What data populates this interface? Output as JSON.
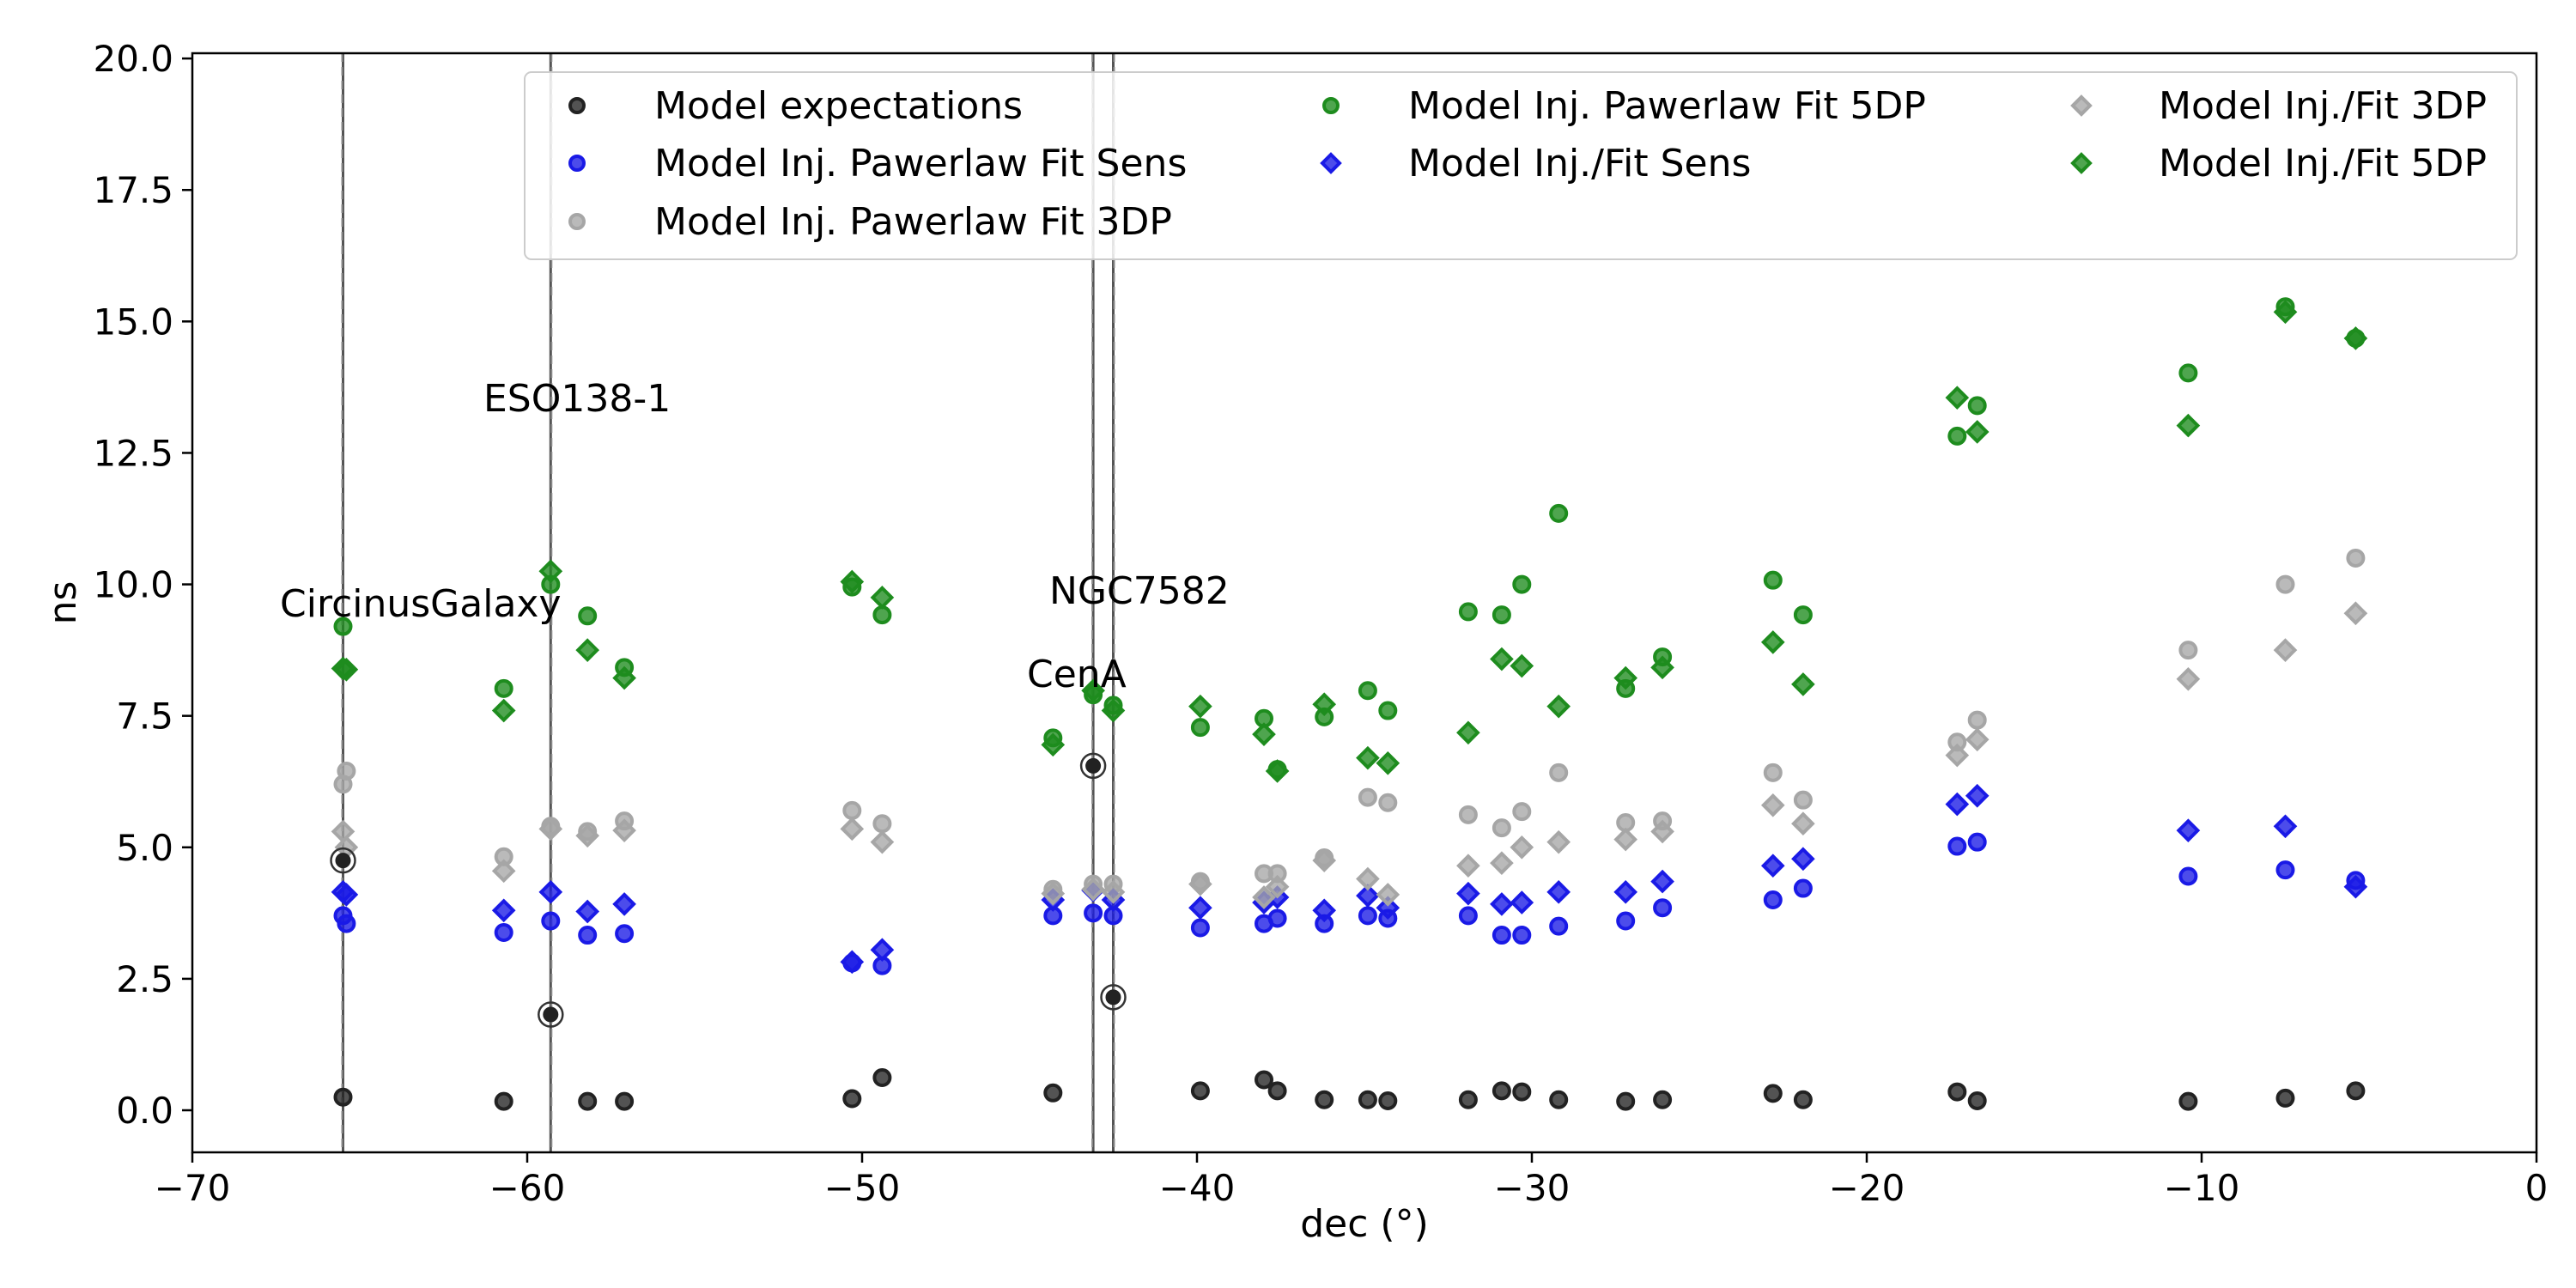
{
  "chart_data": {
    "type": "scatter",
    "xlabel": "dec (°)",
    "ylabel": "ns",
    "xlim": [
      -70,
      0
    ],
    "ylim": [
      -0.8,
      20.1
    ],
    "x_ticks": [
      -70,
      -60,
      -50,
      -40,
      -30,
      -20,
      -10,
      0
    ],
    "x_tick_labels": [
      "−70",
      "−60",
      "−50",
      "−40",
      "−30",
      "−20",
      "−10",
      "0"
    ],
    "y_ticks": [
      0,
      2.5,
      5,
      7.5,
      10,
      12.5,
      15,
      17.5,
      20
    ],
    "y_tick_labels": [
      "0.0",
      "2.5",
      "5.0",
      "7.5",
      "10.0",
      "12.5",
      "15.0",
      "17.5",
      "20.0"
    ],
    "grid": false,
    "legend_position": "top",
    "legend_columns": [
      [
        "Model expectations",
        "Model Inj. Pawerlaw Fit Sens",
        "Model Inj. Pawerlaw Fit 3DP"
      ],
      [
        "Model Inj. Pawerlaw Fit  5DP",
        "Model Inj./Fit Sens"
      ],
      [
        "Model Inj./Fit 3DP",
        "Model Inj./Fit 5DP"
      ]
    ],
    "series": [
      {
        "name": "Model expectations",
        "marker": "circle",
        "color": "#222222",
        "points": [
          [
            -65.5,
            0.25
          ],
          [
            -60.7,
            0.17
          ],
          [
            -58.2,
            0.17
          ],
          [
            -57.1,
            0.17
          ],
          [
            -50.3,
            0.22
          ],
          [
            -49.4,
            0.62
          ],
          [
            -44.3,
            0.33
          ],
          [
            -39.9,
            0.37
          ],
          [
            -38.0,
            0.58
          ],
          [
            -37.6,
            0.37
          ],
          [
            -36.2,
            0.2
          ],
          [
            -34.9,
            0.2
          ],
          [
            -34.3,
            0.18
          ],
          [
            -31.9,
            0.2
          ],
          [
            -30.9,
            0.37
          ],
          [
            -30.3,
            0.35
          ],
          [
            -29.2,
            0.2
          ],
          [
            -27.2,
            0.17
          ],
          [
            -26.1,
            0.2
          ],
          [
            -22.8,
            0.32
          ],
          [
            -21.9,
            0.2
          ],
          [
            -17.3,
            0.35
          ],
          [
            -16.7,
            0.18
          ],
          [
            -10.4,
            0.17
          ],
          [
            -7.5,
            0.23
          ],
          [
            -5.4,
            0.37
          ]
        ]
      },
      {
        "name": "Model Inj. Pawerlaw Fit Sens",
        "marker": "circle",
        "color": "#1a1ae6",
        "points": [
          [
            -65.5,
            3.7
          ],
          [
            -65.4,
            3.55
          ],
          [
            -60.7,
            3.38
          ],
          [
            -59.3,
            3.6
          ],
          [
            -58.2,
            3.33
          ],
          [
            -57.1,
            3.36
          ],
          [
            -50.3,
            2.8
          ],
          [
            -49.4,
            2.75
          ],
          [
            -44.3,
            3.7
          ],
          [
            -43.1,
            3.75
          ],
          [
            -42.5,
            3.7
          ],
          [
            -39.9,
            3.47
          ],
          [
            -38.0,
            3.55
          ],
          [
            -37.6,
            3.65
          ],
          [
            -36.2,
            3.55
          ],
          [
            -34.9,
            3.7
          ],
          [
            -34.3,
            3.65
          ],
          [
            -31.9,
            3.7
          ],
          [
            -30.9,
            3.33
          ],
          [
            -30.3,
            3.33
          ],
          [
            -29.2,
            3.5
          ],
          [
            -27.2,
            3.6
          ],
          [
            -26.1,
            3.85
          ],
          [
            -22.8,
            4.0
          ],
          [
            -21.9,
            4.22
          ],
          [
            -17.3,
            5.02
          ],
          [
            -16.7,
            5.1
          ],
          [
            -10.4,
            4.45
          ],
          [
            -7.5,
            4.57
          ],
          [
            -5.4,
            4.37
          ]
        ]
      },
      {
        "name": "Model Inj. Pawerlaw Fit 3DP",
        "marker": "circle",
        "color": "#a6a6a6",
        "points": [
          [
            -65.5,
            6.2
          ],
          [
            -65.4,
            6.45
          ],
          [
            -60.7,
            4.82
          ],
          [
            -59.3,
            5.4
          ],
          [
            -58.2,
            5.3
          ],
          [
            -57.1,
            5.5
          ],
          [
            -50.3,
            5.7
          ],
          [
            -49.4,
            5.45
          ],
          [
            -44.3,
            4.2
          ],
          [
            -43.1,
            4.3
          ],
          [
            -42.5,
            4.3
          ],
          [
            -39.9,
            4.35
          ],
          [
            -38.0,
            4.5
          ],
          [
            -37.6,
            4.5
          ],
          [
            -36.2,
            4.8
          ],
          [
            -34.9,
            5.95
          ],
          [
            -34.3,
            5.85
          ],
          [
            -31.9,
            5.62
          ],
          [
            -30.9,
            5.37
          ],
          [
            -30.3,
            5.68
          ],
          [
            -29.2,
            6.42
          ],
          [
            -27.2,
            5.47
          ],
          [
            -26.1,
            5.5
          ],
          [
            -22.8,
            6.42
          ],
          [
            -21.9,
            5.9
          ],
          [
            -17.3,
            7.0
          ],
          [
            -16.7,
            7.42
          ],
          [
            -10.4,
            8.75
          ],
          [
            -7.5,
            10.0
          ],
          [
            -5.4,
            10.5
          ]
        ]
      },
      {
        "name": "Model Inj. Pawerlaw Fit  5DP",
        "marker": "circle",
        "color": "#1e8c1e",
        "points": [
          [
            -65.5,
            9.2
          ],
          [
            -60.7,
            8.02
          ],
          [
            -59.3,
            10.0
          ],
          [
            -58.2,
            9.4
          ],
          [
            -57.1,
            8.42
          ],
          [
            -50.3,
            9.95
          ],
          [
            -49.4,
            9.42
          ],
          [
            -44.3,
            7.08
          ],
          [
            -43.1,
            7.9
          ],
          [
            -42.5,
            7.7
          ],
          [
            -39.9,
            7.28
          ],
          [
            -38.0,
            7.45
          ],
          [
            -37.6,
            6.48
          ],
          [
            -36.2,
            7.48
          ],
          [
            -34.9,
            7.98
          ],
          [
            -34.3,
            7.6
          ],
          [
            -31.9,
            9.48
          ],
          [
            -30.9,
            9.42
          ],
          [
            -30.3,
            10.0
          ],
          [
            -29.2,
            11.35
          ],
          [
            -27.2,
            8.02
          ],
          [
            -26.1,
            8.62
          ],
          [
            -22.8,
            10.08
          ],
          [
            -21.9,
            9.42
          ],
          [
            -17.3,
            12.82
          ],
          [
            -16.7,
            13.4
          ],
          [
            -10.4,
            14.02
          ],
          [
            -7.5,
            15.28
          ],
          [
            -5.4,
            14.68
          ]
        ]
      },
      {
        "name": "Model Inj./Fit Sens",
        "marker": "diamond",
        "color": "#1a1ae6",
        "points": [
          [
            -65.5,
            4.15
          ],
          [
            -65.4,
            4.1
          ],
          [
            -60.7,
            3.8
          ],
          [
            -59.3,
            4.15
          ],
          [
            -58.2,
            3.78
          ],
          [
            -57.1,
            3.92
          ],
          [
            -50.3,
            2.82
          ],
          [
            -49.4,
            3.05
          ],
          [
            -44.3,
            4.0
          ],
          [
            -43.1,
            4.18
          ],
          [
            -42.5,
            4.0
          ],
          [
            -39.9,
            3.85
          ],
          [
            -38.0,
            3.95
          ],
          [
            -37.6,
            4.05
          ],
          [
            -36.2,
            3.8
          ],
          [
            -34.9,
            4.08
          ],
          [
            -34.3,
            3.85
          ],
          [
            -31.9,
            4.12
          ],
          [
            -30.9,
            3.92
          ],
          [
            -30.3,
            3.95
          ],
          [
            -29.2,
            4.15
          ],
          [
            -27.2,
            4.15
          ],
          [
            -26.1,
            4.35
          ],
          [
            -22.8,
            4.65
          ],
          [
            -21.9,
            4.78
          ],
          [
            -17.3,
            5.82
          ],
          [
            -16.7,
            5.98
          ],
          [
            -10.4,
            5.32
          ],
          [
            -7.5,
            5.4
          ],
          [
            -5.4,
            4.25
          ]
        ]
      },
      {
        "name": "Model Inj./Fit 3DP",
        "marker": "diamond",
        "color": "#a6a6a6",
        "points": [
          [
            -65.5,
            5.3
          ],
          [
            -65.4,
            5.0
          ],
          [
            -60.7,
            4.55
          ],
          [
            -59.3,
            5.35
          ],
          [
            -58.2,
            5.22
          ],
          [
            -57.1,
            5.32
          ],
          [
            -50.3,
            5.35
          ],
          [
            -49.4,
            5.1
          ],
          [
            -44.3,
            4.12
          ],
          [
            -43.1,
            4.2
          ],
          [
            -42.5,
            4.15
          ],
          [
            -39.9,
            4.3
          ],
          [
            -38.0,
            4.05
          ],
          [
            -37.6,
            4.25
          ],
          [
            -36.2,
            4.75
          ],
          [
            -34.9,
            4.4
          ],
          [
            -34.3,
            4.1
          ],
          [
            -31.9,
            4.65
          ],
          [
            -30.9,
            4.7
          ],
          [
            -30.3,
            5.0
          ],
          [
            -29.2,
            5.1
          ],
          [
            -27.2,
            5.15
          ],
          [
            -26.1,
            5.3
          ],
          [
            -22.8,
            5.8
          ],
          [
            -21.9,
            5.45
          ],
          [
            -17.3,
            6.75
          ],
          [
            -16.7,
            7.05
          ],
          [
            -10.4,
            8.2
          ],
          [
            -7.5,
            8.75
          ],
          [
            -5.4,
            9.45
          ]
        ]
      },
      {
        "name": "Model Inj./Fit 5DP",
        "marker": "diamond",
        "color": "#1e8c1e",
        "points": [
          [
            -65.5,
            8.4
          ],
          [
            -65.4,
            8.38
          ],
          [
            -60.7,
            7.6
          ],
          [
            -59.3,
            10.25
          ],
          [
            -58.2,
            8.75
          ],
          [
            -57.1,
            8.22
          ],
          [
            -50.3,
            10.05
          ],
          [
            -49.4,
            9.75
          ],
          [
            -44.3,
            6.95
          ],
          [
            -43.1,
            7.98
          ],
          [
            -42.5,
            7.6
          ],
          [
            -39.9,
            7.68
          ],
          [
            -38.0,
            7.15
          ],
          [
            -37.6,
            6.45
          ],
          [
            -36.2,
            7.72
          ],
          [
            -34.9,
            6.7
          ],
          [
            -34.3,
            6.6
          ],
          [
            -31.9,
            7.18
          ],
          [
            -30.9,
            8.58
          ],
          [
            -30.3,
            8.45
          ],
          [
            -29.2,
            7.68
          ],
          [
            -27.2,
            8.22
          ],
          [
            -26.1,
            8.42
          ],
          [
            -22.8,
            8.9
          ],
          [
            -21.9,
            8.1
          ],
          [
            -17.3,
            13.55
          ],
          [
            -16.7,
            12.9
          ],
          [
            -10.4,
            13.02
          ],
          [
            -7.5,
            15.18
          ],
          [
            -5.4,
            14.68
          ]
        ]
      }
    ],
    "sources": [
      {
        "name": "CircinusGalaxy",
        "dec": -65.5,
        "ns": 4.75
      },
      {
        "name": "ESO138-1",
        "dec": -59.3,
        "ns": 1.82
      },
      {
        "name": "NGC7582",
        "dec": -43.1,
        "ns": 6.55
      },
      {
        "name": "CenA",
        "dec": -42.5,
        "ns": 2.15
      }
    ]
  }
}
